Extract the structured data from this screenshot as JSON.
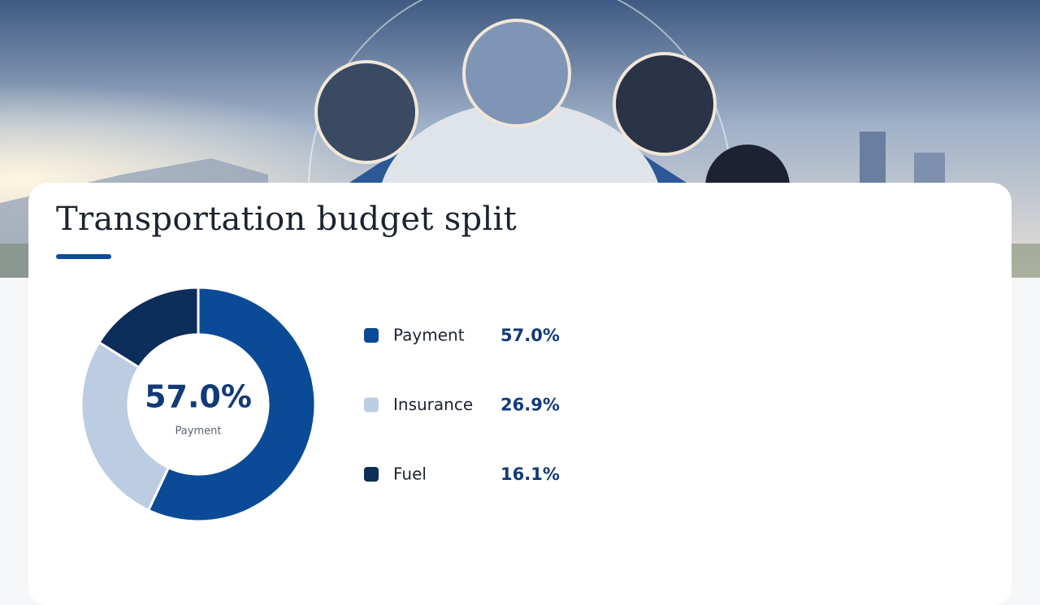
{
  "chart_data": {
    "type": "pie",
    "title": "Transportation budget split",
    "categories": [
      "Payment",
      "Insurance",
      "Fuel"
    ],
    "values": [
      57.0,
      26.9,
      16.1
    ],
    "value_labels": [
      "57.0%",
      "26.9%",
      "16.1%"
    ],
    "colors": [
      "#0b4a96",
      "#bccde3",
      "#0d2d5a"
    ]
  }
}
